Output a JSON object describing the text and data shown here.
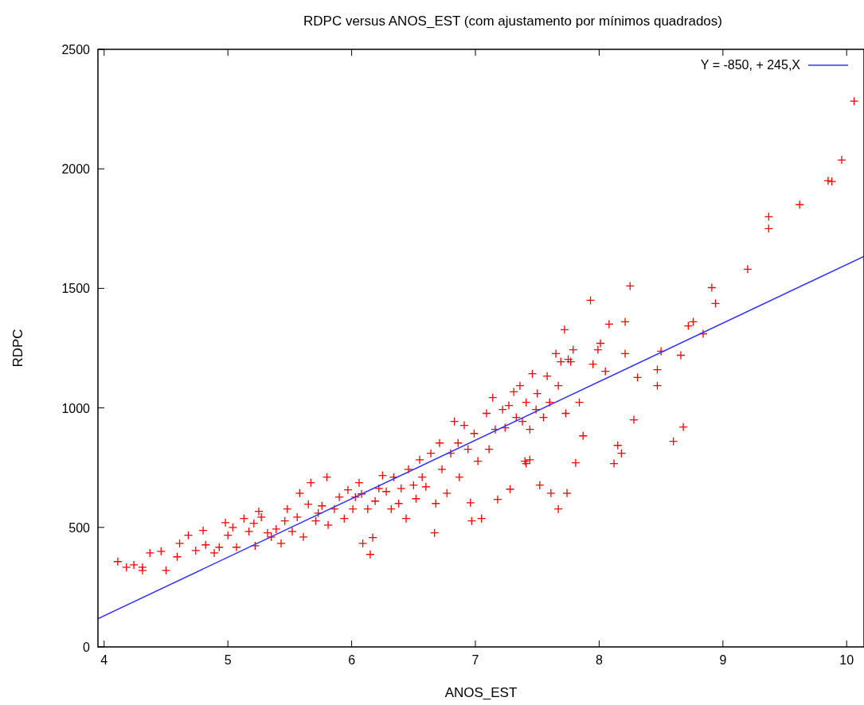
{
  "chart_data": {
    "type": "scatter",
    "title": "RDPC versus ANOS_EST (com ajustamento por mínimos quadrados)",
    "xlabel": "ANOS_EST",
    "ylabel": "RDPC",
    "xlim": [
      3.95,
      10.14
    ],
    "ylim": [
      0,
      2500
    ],
    "xticks": [
      4,
      5,
      6,
      7,
      8,
      9,
      10
    ],
    "yticks": [
      0,
      500,
      1000,
      1500,
      2000,
      2500
    ],
    "grid": false,
    "legend": "top right",
    "series": [
      {
        "marker": "cross",
        "color": "#ff0000",
        "x": [
          4.11,
          4.18,
          4.24,
          4.31,
          4.31,
          4.37,
          4.46,
          4.5,
          4.59,
          4.61,
          4.68,
          4.74,
          4.8,
          4.82,
          4.89,
          4.93,
          4.98,
          5.0,
          5.04,
          5.07,
          5.13,
          5.17,
          5.21,
          5.22,
          5.25,
          5.27,
          5.32,
          5.35,
          5.39,
          5.43,
          5.46,
          5.48,
          5.52,
          5.56,
          5.58,
          5.61,
          5.65,
          5.67,
          5.71,
          5.73,
          5.76,
          5.8,
          5.81,
          5.86,
          5.9,
          5.94,
          5.97,
          6.01,
          6.03,
          6.06,
          6.08,
          6.09,
          6.13,
          6.15,
          6.17,
          6.19,
          6.22,
          6.25,
          6.28,
          6.32,
          6.34,
          6.38,
          6.4,
          6.44,
          6.46,
          6.5,
          6.52,
          6.55,
          6.57,
          6.6,
          6.64,
          6.67,
          6.68,
          6.71,
          6.73,
          6.77,
          6.8,
          6.83,
          6.86,
          6.87,
          6.91,
          6.94,
          6.96,
          6.97,
          6.99,
          7.02,
          7.05,
          7.09,
          7.11,
          7.14,
          7.16,
          7.18,
          7.22,
          7.24,
          7.27,
          7.28,
          7.31,
          7.33,
          7.36,
          7.38,
          7.4,
          7.41,
          7.41,
          7.44,
          7.44,
          7.46,
          7.49,
          7.5,
          7.52,
          7.55,
          7.58,
          7.6,
          7.61,
          7.65,
          7.67,
          7.67,
          7.69,
          7.72,
          7.73,
          7.74,
          7.75,
          7.77,
          7.79,
          7.81,
          7.84,
          7.87,
          7.93,
          7.95,
          7.99,
          8.01,
          8.05,
          8.08,
          8.12,
          8.15,
          8.18,
          8.21,
          8.21,
          8.25,
          8.28,
          8.31,
          8.47,
          8.47,
          8.5,
          8.6,
          8.66,
          8.68,
          8.72,
          8.76,
          8.84,
          8.91,
          8.94,
          9.2,
          9.37,
          9.37,
          9.62,
          9.85,
          9.88,
          9.96,
          10.06
        ],
        "values": [
          357,
          333,
          343,
          333,
          320,
          393,
          400,
          320,
          377,
          433,
          467,
          403,
          487,
          427,
          393,
          417,
          520,
          467,
          500,
          417,
          537,
          483,
          517,
          423,
          567,
          543,
          477,
          460,
          493,
          433,
          527,
          577,
          483,
          543,
          643,
          460,
          597,
          687,
          527,
          560,
          590,
          710,
          510,
          577,
          627,
          537,
          657,
          577,
          627,
          687,
          640,
          433,
          577,
          387,
          457,
          610,
          663,
          717,
          650,
          577,
          710,
          600,
          663,
          537,
          743,
          677,
          620,
          783,
          710,
          670,
          810,
          477,
          600,
          853,
          743,
          643,
          810,
          943,
          853,
          710,
          927,
          827,
          603,
          527,
          893,
          777,
          537,
          977,
          827,
          1043,
          910,
          617,
          993,
          917,
          1010,
          660,
          1067,
          960,
          1093,
          943,
          777,
          1023,
          767,
          910,
          783,
          1143,
          993,
          1060,
          677,
          960,
          1133,
          1023,
          643,
          1227,
          1093,
          577,
          1193,
          1327,
          977,
          643,
          1203,
          1193,
          1243,
          770,
          1023,
          883,
          1450,
          1183,
          1243,
          1270,
          1153,
          1350,
          767,
          843,
          810,
          1227,
          1360,
          1510,
          950,
          1127,
          1093,
          1160,
          1237,
          860,
          1220,
          920,
          1343,
          1360,
          1310,
          1503,
          1437,
          1580,
          1800,
          1750,
          1850,
          1950,
          1947,
          2037,
          2283
        ]
      },
      {
        "type": "line",
        "name": "Y = -850, + 245,X",
        "color": "#3333ff",
        "x": [
          3.95,
          10.14
        ],
        "values": [
          118,
          1634
        ]
      }
    ]
  }
}
